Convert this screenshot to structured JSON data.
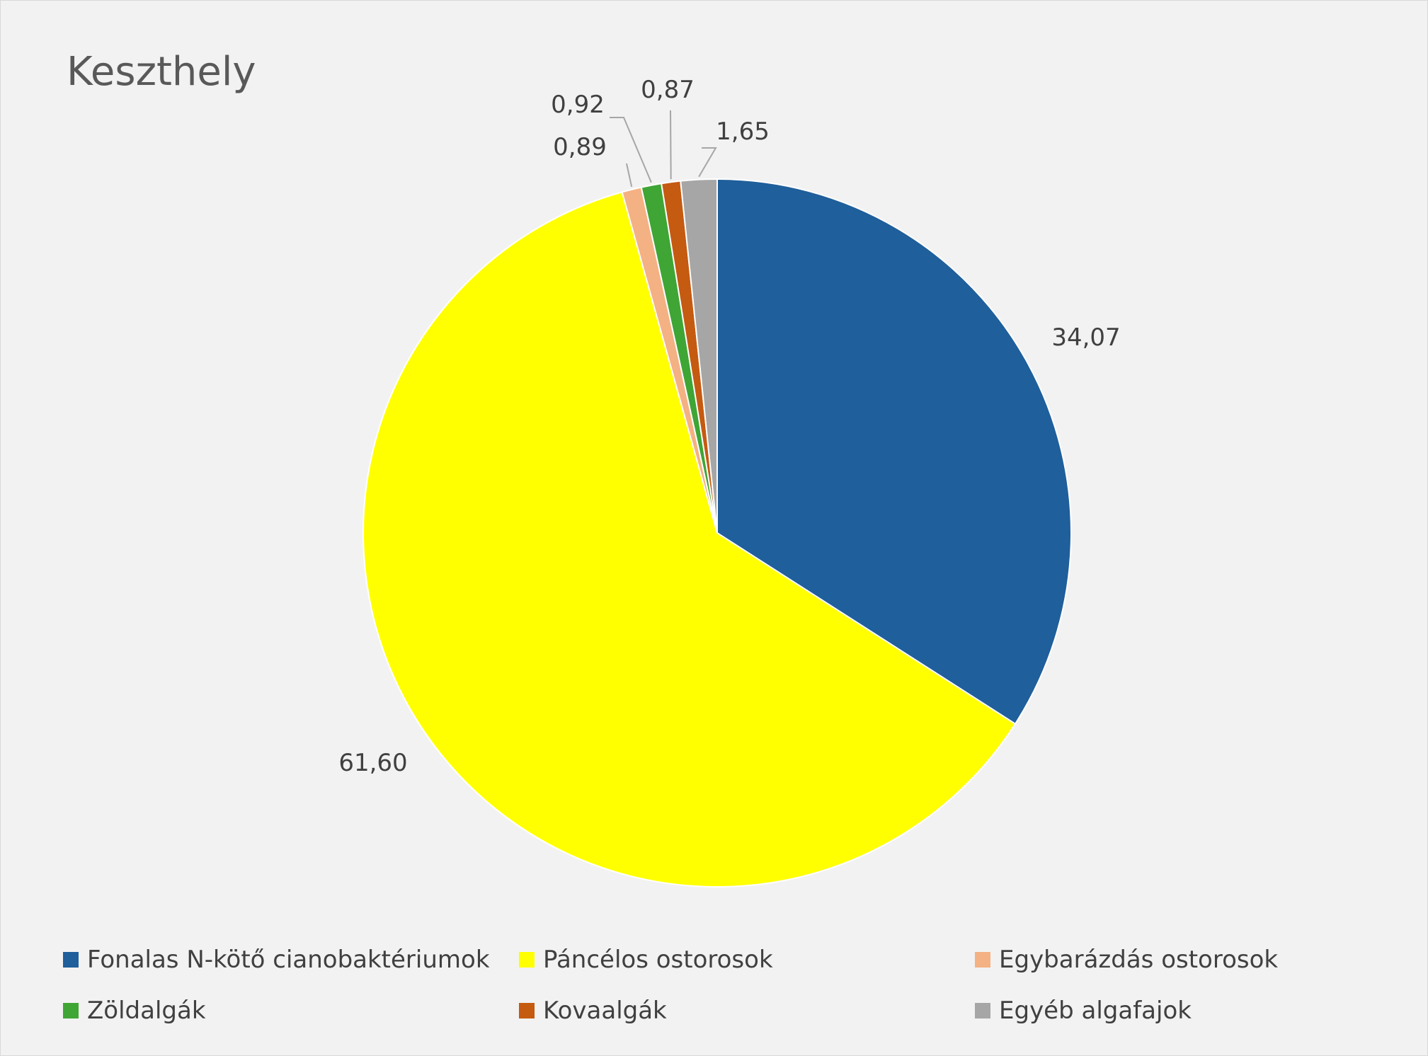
{
  "chart_data": {
    "type": "pie",
    "title": "Keszthely",
    "categories": [
      "Fonalas N-kötő cianobaktériumok",
      "Páncélos ostorosok",
      "Egybarázdás ostorosok",
      "Zöldalgák",
      "Kovaalgák",
      "Egyéb algafajok"
    ],
    "values": [
      34.07,
      61.6,
      0.89,
      0.92,
      0.87,
      1.65
    ],
    "data_labels": [
      "34,07",
      "61,60",
      "0,89",
      "0,92",
      "0,87",
      "1,65"
    ],
    "colors": [
      "#1f5f9b",
      "#ffff00",
      "#f4b183",
      "#3fa535",
      "#c55a11",
      "#a6a6a6"
    ],
    "legend_position": "bottom"
  }
}
